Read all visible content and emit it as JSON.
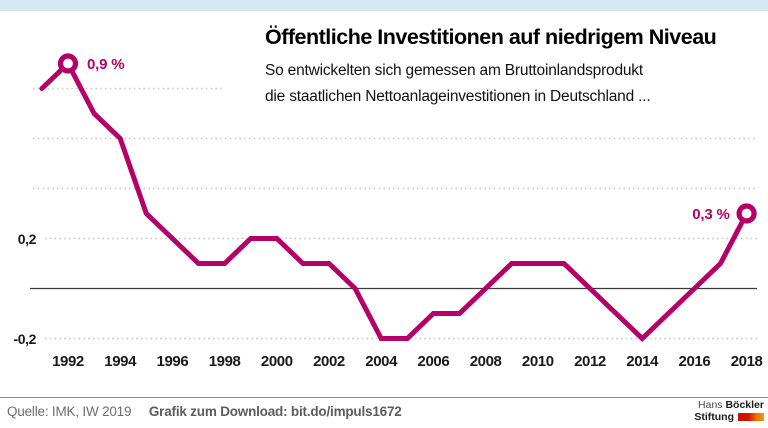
{
  "top_bar": {
    "color": "#d6e8f0"
  },
  "header": {
    "title": "Öffentliche Investitionen auf niedrigem Niveau",
    "subtitle_line1": "So entwickelten sich gemessen am Bruttoinlandsprodukt",
    "subtitle_line2": "die staatlichen Nettoanlageinvestitionen in Deutschland ..."
  },
  "chart_data": {
    "type": "line",
    "title": "Öffentliche Investitionen auf niedrigem Niveau",
    "x": [
      1991,
      1992,
      1993,
      1994,
      1995,
      1996,
      1997,
      1998,
      1999,
      2000,
      2001,
      2002,
      2003,
      2004,
      2005,
      2006,
      2007,
      2008,
      2009,
      2010,
      2011,
      2012,
      2013,
      2014,
      2015,
      2016,
      2017,
      2018
    ],
    "values": [
      0.8,
      0.9,
      0.7,
      0.6,
      0.3,
      0.2,
      0.1,
      0.1,
      0.2,
      0.2,
      0.1,
      0.1,
      0.0,
      -0.2,
      -0.2,
      -0.1,
      -0.1,
      0.0,
      0.1,
      0.1,
      0.1,
      0.0,
      -0.1,
      -0.2,
      -0.1,
      0.0,
      0.1,
      0.3
    ],
    "x_tick_labels": [
      "1992",
      "1994",
      "1996",
      "1998",
      "2000",
      "2002",
      "2004",
      "2006",
      "2008",
      "2010",
      "2012",
      "2014",
      "2016",
      "2018"
    ],
    "y_ticks": [
      {
        "value": 0.2,
        "label": "0,2"
      },
      {
        "value": -0.2,
        "label": "-0,2"
      }
    ],
    "gridlines": [
      0.8,
      0.6,
      0.4,
      0.2,
      -0.2
    ],
    "zero_line": 0,
    "ylim": [
      -0.3,
      1.0
    ],
    "grid_on": true,
    "legend": "none",
    "annotations": [
      {
        "year": 1992,
        "value": 0.9,
        "label": "0,9 %",
        "side": "right"
      },
      {
        "year": 2018,
        "value": 0.3,
        "label": "0,3 %",
        "side": "left"
      }
    ],
    "line_color": "#b60069",
    "grid_color": "#c9c9c0",
    "axis_color": "#3a3a3a"
  },
  "footer": {
    "source": "Quelle: IMK, IW 2019",
    "download": "Grafik zum Download: bit.do/impuls1672",
    "logo": {
      "line1_regular": "Hans",
      "line1_bold": "Böckler",
      "line2_bold": "Stiftung"
    }
  }
}
